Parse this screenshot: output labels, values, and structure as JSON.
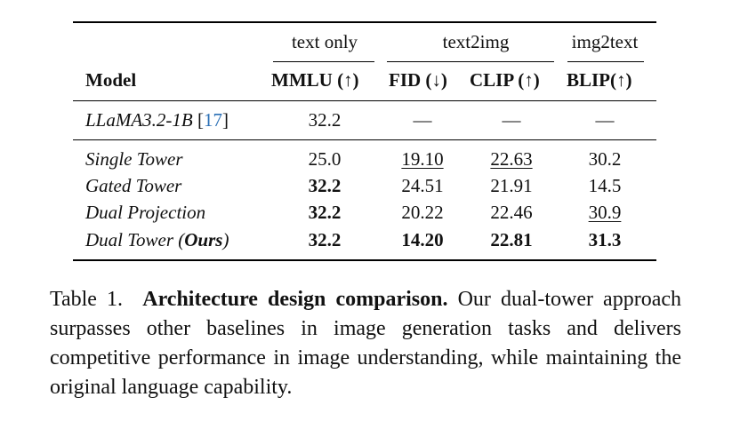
{
  "table": {
    "groups": {
      "text_only": "text only",
      "text2img": "text2img",
      "img2text": "img2text"
    },
    "headers": {
      "model": "Model",
      "mmlu": "MMLU (↑)",
      "fid": "FID (↓)",
      "clip": "CLIP (↑)",
      "blip": "BLIP(↑)"
    },
    "baseline": {
      "name": "LLaMA3.2-1B",
      "ref_open": " [",
      "ref_num": "17",
      "ref_close": "]",
      "mmlu": "32.2",
      "fid": "—",
      "clip": "—",
      "blip": "—"
    },
    "rows": [
      {
        "name": "Single Tower",
        "mmlu": "25.0",
        "fid": "19.10",
        "clip": "22.63",
        "blip": "30.2"
      },
      {
        "name": "Gated Tower",
        "mmlu": "32.2",
        "fid": "24.51",
        "clip": "21.91",
        "blip": "14.5"
      },
      {
        "name": "Dual Projection",
        "mmlu": "32.2",
        "fid": "20.22",
        "clip": "22.46",
        "blip": "30.9"
      },
      {
        "name": "Dual Tower (",
        "name_bold": "Ours",
        "name_close": ")",
        "mmlu": "32.2",
        "fid": "14.20",
        "clip": "22.81",
        "blip": "31.3"
      }
    ]
  },
  "caption": {
    "label": "Table 1.",
    "title": "Architecture design comparison.",
    "text": "Our dual-tower approach surpasses other baselines in image generation tasks and delivers competitive performance in image understanding, while maintaining the original language capability."
  },
  "colors": {
    "ref_link": "#2a6fb5"
  }
}
